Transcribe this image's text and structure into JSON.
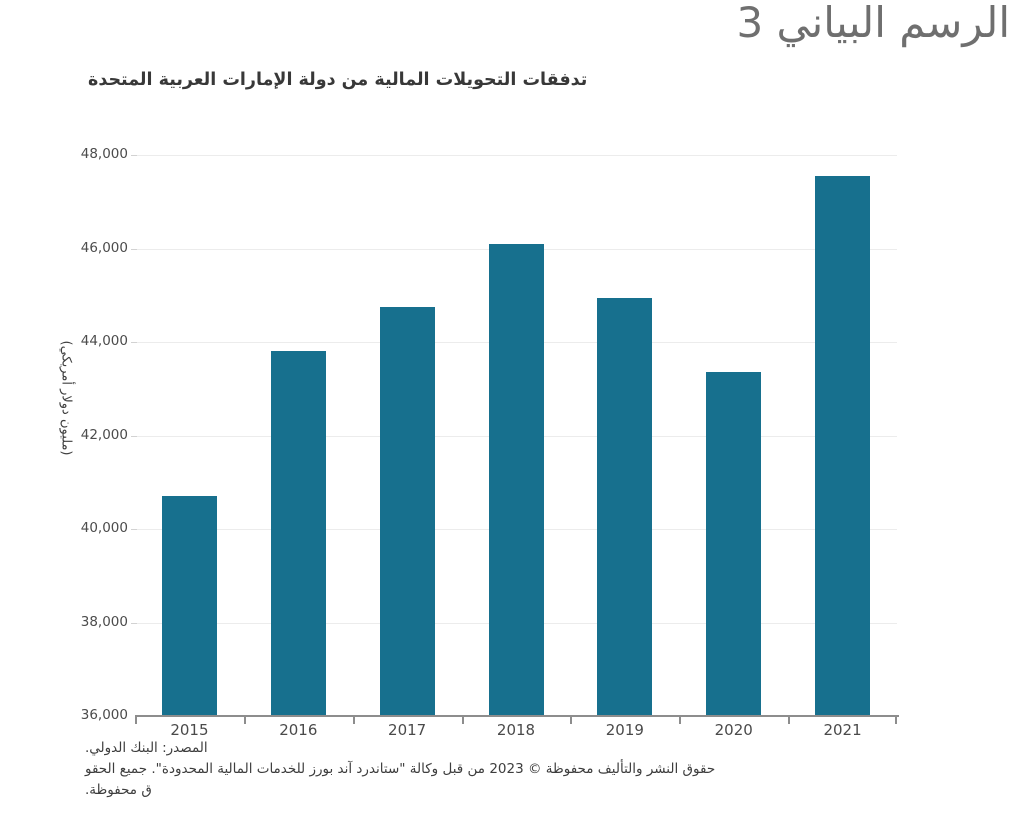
{
  "page": {
    "heading": "الرسم البياني 3",
    "background": "#ffffff"
  },
  "chart_data": {
    "type": "bar",
    "title": "تدفقات التحويلات المالية من دولة الإمارات العربية المتحدة",
    "xlabel": "",
    "ylabel": "(مليون دولار أمريكي)",
    "categories": [
      "2015",
      "2016",
      "2017",
      "2018",
      "2019",
      "2020",
      "2021"
    ],
    "values": [
      40700,
      43800,
      44750,
      46100,
      44950,
      43350,
      47550
    ],
    "ylim": [
      36000,
      48000
    ],
    "ytick_values": [
      48000,
      46000,
      44000,
      42000,
      40000,
      38000,
      36000
    ],
    "ytick_labels": [
      "48,000",
      "46,000",
      "44,000",
      "42,000",
      "40,000",
      "38,000",
      "36,000"
    ],
    "grid": true,
    "legend": false,
    "bar_color": "#17708E",
    "axis_color": "#8d8d8d",
    "gridline_color": "#ececec"
  },
  "footer": {
    "source": "المصدر: البنك الدولي.",
    "copyright_line1": "حقوق النشر والتأليف محفوظة © 2023 من قبل وكالة \"ستاندرد آند بورز للخدمات المالية المحدودة\". جميع الحقو",
    "copyright_line2": "ق محفوظة."
  }
}
